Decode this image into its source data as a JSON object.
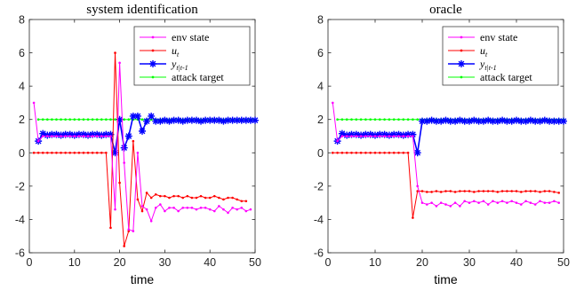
{
  "chart_data": [
    {
      "type": "line",
      "title": "system identification",
      "xlabel": "time",
      "ylabel": "",
      "xlim": [
        0,
        50
      ],
      "ylim": [
        -6,
        8
      ],
      "xticks": [
        0,
        10,
        20,
        30,
        40,
        50
      ],
      "yticks": [
        8,
        6,
        4,
        2,
        0,
        -2,
        -4,
        -6
      ],
      "legend_position": "top-right",
      "series": [
        {
          "name": "env state",
          "color": "#ff00ff",
          "marker": "dot",
          "x": [
            1,
            2,
            3,
            4,
            5,
            6,
            7,
            8,
            9,
            10,
            11,
            12,
            13,
            14,
            15,
            16,
            17,
            18,
            19,
            20,
            21,
            22,
            23,
            24,
            25,
            26,
            27,
            28,
            29,
            30,
            31,
            32,
            33,
            34,
            35,
            36,
            37,
            38,
            39,
            40,
            41,
            42,
            43,
            44,
            45,
            46,
            47,
            48,
            49
          ],
          "values": [
            3.0,
            0.7,
            1.0,
            1.0,
            1.0,
            1.0,
            1.0,
            1.0,
            1.0,
            1.0,
            1.0,
            1.0,
            1.0,
            1.0,
            1.0,
            1.0,
            1.0,
            1.0,
            -3.4,
            5.4,
            -0.6,
            -4.6,
            -4.7,
            0.0,
            -3.2,
            -3.4,
            -4.1,
            -3.3,
            -3.1,
            -3.5,
            -3.3,
            -3.3,
            -3.5,
            -3.3,
            -3.3,
            -3.3,
            -3.4,
            -3.3,
            -3.3,
            -3.4,
            -3.5,
            -3.2,
            -3.4,
            -3.6,
            -3.3,
            -3.4,
            -3.3,
            -3.5,
            -3.4
          ]
        },
        {
          "name": "u_t",
          "color": "#ff0000",
          "marker": "dot",
          "x": [
            1,
            2,
            3,
            4,
            5,
            6,
            7,
            8,
            9,
            10,
            11,
            12,
            13,
            14,
            15,
            16,
            17,
            18,
            19,
            20,
            21,
            22,
            23,
            24,
            25,
            26,
            27,
            28,
            29,
            30,
            31,
            32,
            33,
            34,
            35,
            36,
            37,
            38,
            39,
            40,
            41,
            42,
            43,
            44,
            45,
            46,
            47,
            48
          ],
          "values": [
            0,
            0,
            0,
            0,
            0,
            0,
            0,
            0,
            0,
            0,
            0,
            0,
            0,
            0,
            0,
            0,
            0,
            -4.5,
            6.0,
            -1.8,
            -5.6,
            -4.7,
            0.7,
            -2.8,
            -3.5,
            -2.4,
            -2.7,
            -2.5,
            -2.6,
            -2.6,
            -2.7,
            -2.6,
            -2.6,
            -2.7,
            -2.6,
            -2.7,
            -2.7,
            -2.6,
            -2.7,
            -2.7,
            -2.6,
            -2.7,
            -2.8,
            -2.7,
            -2.7,
            -2.8,
            -2.9,
            -2.9
          ]
        },
        {
          "name": "y_{t|t-1}",
          "color": "#0000ff",
          "marker": "star",
          "x": [
            2,
            3,
            4,
            5,
            6,
            7,
            8,
            9,
            10,
            11,
            12,
            13,
            14,
            15,
            16,
            17,
            18,
            19,
            20,
            21,
            22,
            23,
            24,
            25,
            26,
            27,
            28,
            29,
            30,
            31,
            32,
            33,
            34,
            35,
            36,
            37,
            38,
            39,
            40,
            41,
            42,
            43,
            44,
            45,
            46,
            47,
            48,
            49,
            50
          ],
          "values": [
            0.7,
            1.15,
            1.05,
            1.1,
            1.1,
            1.05,
            1.1,
            1.1,
            1.05,
            1.1,
            1.1,
            1.05,
            1.1,
            1.1,
            1.05,
            1.1,
            1.1,
            0.0,
            2.0,
            0.3,
            1.0,
            2.2,
            2.2,
            1.3,
            1.9,
            2.2,
            1.9,
            1.9,
            1.95,
            1.9,
            1.95,
            1.95,
            1.9,
            1.95,
            1.95,
            1.95,
            1.9,
            1.95,
            1.95,
            1.95,
            1.95,
            1.9,
            1.95,
            1.95,
            1.95,
            1.95,
            1.95,
            1.95,
            1.95
          ]
        },
        {
          "name": "attack target",
          "color": "#00ff00",
          "marker": "dot",
          "x": [
            2,
            3,
            4,
            5,
            6,
            7,
            8,
            9,
            10,
            11,
            12,
            13,
            14,
            15,
            16,
            17,
            18,
            19,
            20,
            21,
            22,
            23,
            24,
            25,
            26,
            27,
            28,
            29,
            30,
            31,
            32,
            33,
            34,
            35,
            36,
            37,
            38,
            39,
            40,
            41,
            42,
            43,
            44,
            45,
            46,
            47,
            48,
            49,
            50
          ],
          "values": [
            2,
            2,
            2,
            2,
            2,
            2,
            2,
            2,
            2,
            2,
            2,
            2,
            2,
            2,
            2,
            2,
            2,
            2,
            2,
            2,
            2,
            2,
            2,
            2,
            2,
            2,
            2,
            2,
            2,
            2,
            2,
            2,
            2,
            2,
            2,
            2,
            2,
            2,
            2,
            2,
            2,
            2,
            2,
            2,
            2,
            2,
            2,
            2,
            2
          ]
        }
      ]
    },
    {
      "type": "line",
      "title": "oracle",
      "xlabel": "time",
      "ylabel": "",
      "xlim": [
        0,
        50
      ],
      "ylim": [
        -6,
        8
      ],
      "xticks": [
        0,
        10,
        20,
        30,
        40,
        50
      ],
      "yticks": [
        8,
        6,
        4,
        2,
        0,
        -2,
        -4,
        -6
      ],
      "legend_position": "top-right",
      "series": [
        {
          "name": "env state",
          "color": "#ff00ff",
          "marker": "dot",
          "x": [
            1,
            2,
            3,
            4,
            5,
            6,
            7,
            8,
            9,
            10,
            11,
            12,
            13,
            14,
            15,
            16,
            17,
            18,
            19,
            20,
            21,
            22,
            23,
            24,
            25,
            26,
            27,
            28,
            29,
            30,
            31,
            32,
            33,
            34,
            35,
            36,
            37,
            38,
            39,
            40,
            41,
            42,
            43,
            44,
            45,
            46,
            47,
            48,
            49
          ],
          "values": [
            3.0,
            0.7,
            1.0,
            1.0,
            1.0,
            1.0,
            1.0,
            1.0,
            1.0,
            1.0,
            1.0,
            1.0,
            1.0,
            1.0,
            1.0,
            1.0,
            1.0,
            1.0,
            -2.0,
            -3.0,
            -3.1,
            -3.0,
            -3.2,
            -3.0,
            -3.1,
            -3.2,
            -3.0,
            -3.2,
            -2.9,
            -3.0,
            -2.9,
            -3.0,
            -2.9,
            -3.1,
            -2.9,
            -3.0,
            -2.9,
            -3.0,
            -2.9,
            -3.0,
            -3.1,
            -2.9,
            -3.0,
            -3.1,
            -2.9,
            -3.0,
            -3.0,
            -2.9,
            -3.0
          ]
        },
        {
          "name": "u_t",
          "color": "#ff0000",
          "marker": "dot",
          "x": [
            1,
            2,
            3,
            4,
            5,
            6,
            7,
            8,
            9,
            10,
            11,
            12,
            13,
            14,
            15,
            16,
            17,
            18,
            19,
            20,
            21,
            22,
            23,
            24,
            25,
            26,
            27,
            28,
            29,
            30,
            31,
            32,
            33,
            34,
            35,
            36,
            37,
            38,
            39,
            40,
            41,
            42,
            43,
            44,
            45,
            46,
            47,
            48,
            49
          ],
          "values": [
            0,
            0,
            0,
            0,
            0,
            0,
            0,
            0,
            0,
            0,
            0,
            0,
            0,
            0,
            0,
            0,
            0,
            -3.9,
            -2.3,
            -2.3,
            -2.35,
            -2.35,
            -2.3,
            -2.35,
            -2.3,
            -2.3,
            -2.35,
            -2.3,
            -2.3,
            -2.3,
            -2.35,
            -2.3,
            -2.3,
            -2.3,
            -2.3,
            -2.35,
            -2.3,
            -2.3,
            -2.3,
            -2.3,
            -2.35,
            -2.3,
            -2.3,
            -2.3,
            -2.35,
            -2.3,
            -2.3,
            -2.35,
            -2.4
          ]
        },
        {
          "name": "y_{t|t-1}",
          "color": "#0000ff",
          "marker": "star",
          "x": [
            2,
            3,
            4,
            5,
            6,
            7,
            8,
            9,
            10,
            11,
            12,
            13,
            14,
            15,
            16,
            17,
            18,
            19,
            20,
            21,
            22,
            23,
            24,
            25,
            26,
            27,
            28,
            29,
            30,
            31,
            32,
            33,
            34,
            35,
            36,
            37,
            38,
            39,
            40,
            41,
            42,
            43,
            44,
            45,
            46,
            47,
            48,
            49,
            50
          ],
          "values": [
            0.7,
            1.15,
            1.05,
            1.1,
            1.1,
            1.05,
            1.1,
            1.1,
            1.05,
            1.1,
            1.1,
            1.05,
            1.1,
            1.1,
            1.05,
            1.1,
            1.1,
            0.0,
            1.9,
            1.9,
            1.95,
            1.9,
            1.9,
            1.95,
            1.9,
            1.9,
            1.95,
            1.9,
            1.9,
            1.95,
            1.9,
            1.9,
            1.95,
            1.9,
            1.9,
            1.95,
            1.9,
            1.9,
            1.95,
            1.9,
            1.9,
            1.95,
            1.9,
            1.9,
            1.95,
            1.9,
            1.9,
            1.9,
            1.9
          ]
        },
        {
          "name": "attack target",
          "color": "#00ff00",
          "marker": "dot",
          "x": [
            2,
            3,
            4,
            5,
            6,
            7,
            8,
            9,
            10,
            11,
            12,
            13,
            14,
            15,
            16,
            17,
            18,
            19,
            20,
            21,
            22,
            23,
            24,
            25,
            26,
            27,
            28,
            29,
            30,
            31,
            32,
            33,
            34,
            35,
            36,
            37,
            38,
            39,
            40,
            41,
            42,
            43,
            44,
            45,
            46,
            47,
            48,
            49,
            50
          ],
          "values": [
            2,
            2,
            2,
            2,
            2,
            2,
            2,
            2,
            2,
            2,
            2,
            2,
            2,
            2,
            2,
            2,
            2,
            2,
            2,
            2,
            2,
            2,
            2,
            2,
            2,
            2,
            2,
            2,
            2,
            2,
            2,
            2,
            2,
            2,
            2,
            2,
            2,
            2,
            2,
            2,
            2,
            2,
            2,
            2,
            2,
            2,
            2,
            2,
            2
          ]
        }
      ]
    }
  ]
}
